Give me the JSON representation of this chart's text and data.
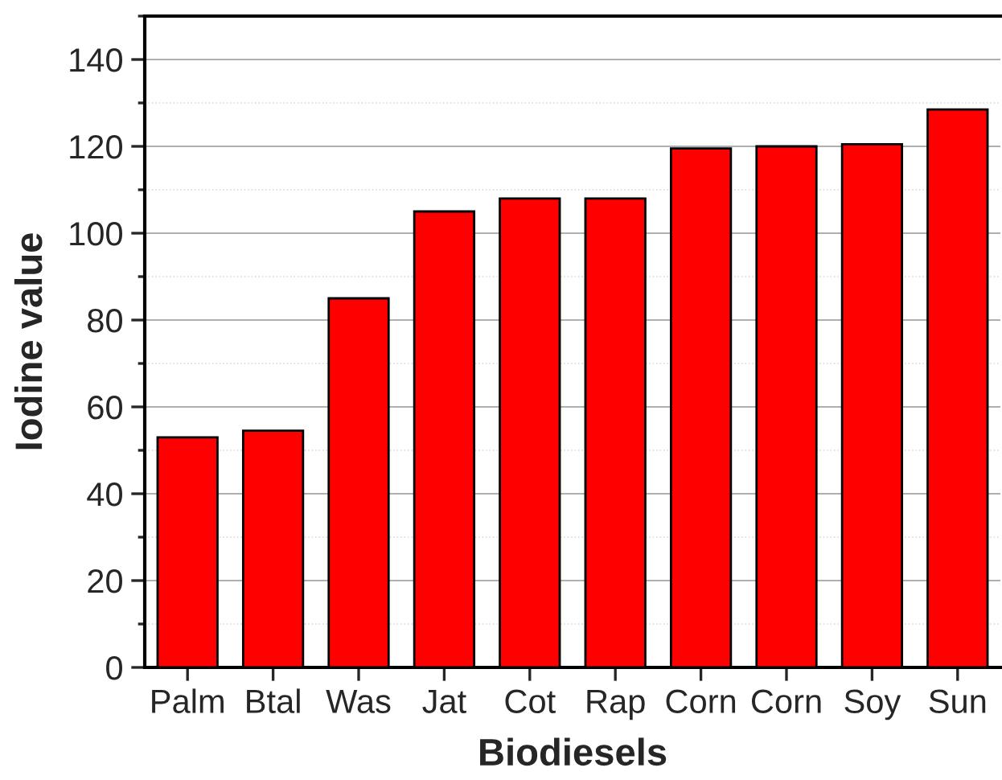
{
  "chart_data": {
    "type": "bar",
    "xlabel": "Biodiesels",
    "ylabel": "Iodine value",
    "categories": [
      "Palm",
      "Btal",
      "Was",
      "Jat",
      "Cot",
      "Rap",
      "Corn",
      "Corn",
      "Soy",
      "Sun"
    ],
    "values": [
      53,
      54.5,
      85,
      105,
      108,
      108,
      119.5,
      120,
      120.5,
      128.5
    ],
    "color": "#ff0000",
    "ylim": [
      0,
      150
    ],
    "yticks": [
      0,
      20,
      40,
      60,
      80,
      100,
      120,
      140
    ],
    "grid": "y"
  }
}
